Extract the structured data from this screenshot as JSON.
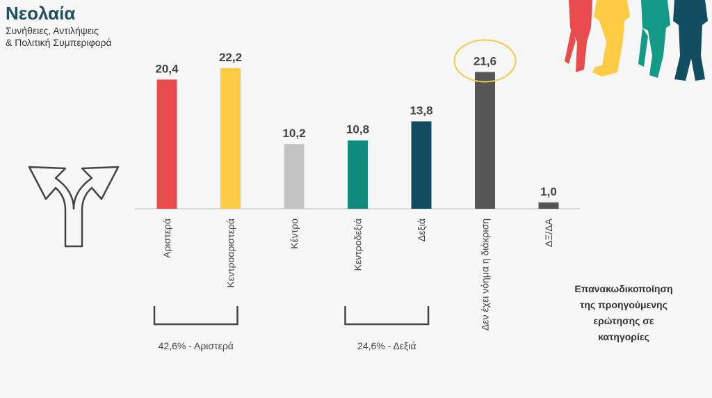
{
  "header": {
    "title": "Νεολαία",
    "subtitle_lines": [
      "Συνήθειες, Αντιλήψεις",
      "& Πολιτική Συμπεριφορά"
    ]
  },
  "note": {
    "lines": [
      "Επανακωδικοποίηση",
      "της προηγούμενης",
      "ερώτησης σε",
      "κατηγορίες"
    ]
  },
  "groups": [
    {
      "label": "42,6% - Αριστερά",
      "from": "Αριστερά",
      "to": "Κεντροαριστερά"
    },
    {
      "label": "24,6% - Δεξιά",
      "from": "Κεντροδεξιά",
      "to": "Δεξιά"
    }
  ],
  "highlight": {
    "category": "Δεν έχει νόημα η διάκριση",
    "color": "#f2c94c"
  },
  "icons": {
    "arrow": "split-arrow-icon",
    "people": "youth-people-icon"
  },
  "chart_data": {
    "type": "bar",
    "categories": [
      "Αριστερά",
      "Κεντροαριστερά",
      "Κέντρο",
      "Κεντροδεξιά",
      "Δεξιά",
      "Δεν έχει νόημα η διάκριση",
      "ΔΞ/ΔΑ"
    ],
    "values": [
      20.4,
      22.2,
      10.2,
      10.8,
      13.8,
      21.6,
      1.0
    ],
    "value_labels": [
      "20,4",
      "22,2",
      "10,2",
      "10,8",
      "13,8",
      "21,6",
      "1,0"
    ],
    "colors": [
      "#e84c4c",
      "#fecb45",
      "#c4c4c4",
      "#0f8a7b",
      "#124d62",
      "#555555",
      "#555555"
    ],
    "title": "",
    "xlabel": "",
    "ylabel": "",
    "ylim": [
      0,
      22.2
    ],
    "grid": false,
    "legend": "none"
  }
}
